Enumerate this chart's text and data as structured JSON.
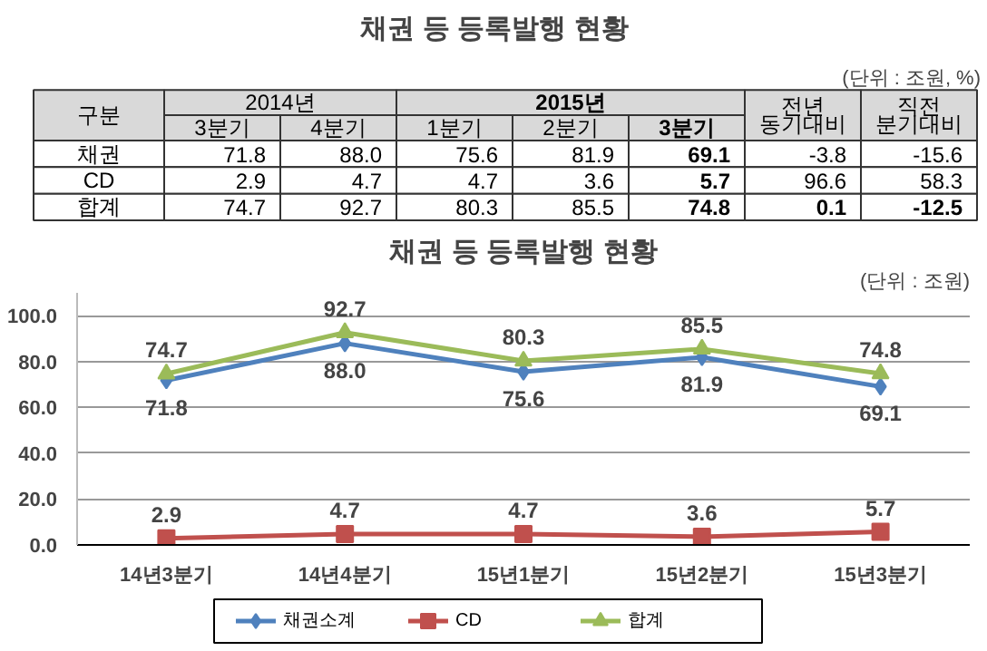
{
  "chart_data": [
    {
      "type": "other",
      "title": "채권 등 등록발행 현황",
      "xlabel": "구분",
      "annotations": [
        "(단위 : 조원, %)",
        "2014년",
        "2015년"
      ],
      "categories": [
        "3분기",
        "4분기",
        "1분기",
        "2분기",
        "3분기",
        "전년 동기대비",
        "직전 분기대비"
      ],
      "y_categories": [
        "채권",
        "CD",
        "합계"
      ],
      "cell_labels": [
        [
          "71.8",
          "88.0",
          "75.6",
          "81.9",
          "69.1",
          "-3.8",
          "-15.6"
        ],
        [
          "2.9",
          "4.7",
          "4.7",
          "3.6",
          "5.7",
          "96.6",
          "58.3"
        ],
        [
          "74.7",
          "92.7",
          "80.3",
          "85.5",
          "74.8",
          "0.1",
          "-12.5"
        ]
      ]
    },
    {
      "type": "line",
      "title": "채권 등 등록발행 현황",
      "annotations": [
        "(단위 : 조원)"
      ],
      "categories": [
        "14년3분기",
        "14년4분기",
        "15년1분기",
        "15년2분기",
        "15년3분기"
      ],
      "series": [
        {
          "name": "채권소계",
          "color": "#4f81bd",
          "marker": "diamond",
          "values": [
            71.8,
            88.0,
            75.6,
            81.9,
            69.1
          ],
          "value_labels": [
            "71.8",
            "88.0",
            "75.6",
            "81.9",
            "69.1"
          ]
        },
        {
          "name": "CD",
          "color": "#c0504d",
          "marker": "square",
          "values": [
            2.9,
            4.7,
            4.7,
            3.6,
            5.7
          ],
          "value_labels": [
            "2.9",
            "4.7",
            "4.7",
            "3.6",
            "5.7"
          ]
        },
        {
          "name": "합계",
          "color": "#9bbb59",
          "marker": "triangle",
          "values": [
            74.7,
            92.7,
            80.3,
            85.5,
            74.8
          ],
          "value_labels": [
            "74.7",
            "92.7",
            "80.3",
            "85.5",
            "74.8"
          ]
        }
      ],
      "ylim": [
        0,
        110
      ],
      "yticks": [
        {
          "value": 0,
          "label": "0.0"
        },
        {
          "value": 20,
          "label": "20.0"
        },
        {
          "value": 40,
          "label": "40.0"
        },
        {
          "value": 60,
          "label": "60.0"
        },
        {
          "value": 80,
          "label": "80.0"
        },
        {
          "value": 100,
          "label": "100.0"
        }
      ],
      "grid": "y",
      "legend": "bottom"
    }
  ]
}
